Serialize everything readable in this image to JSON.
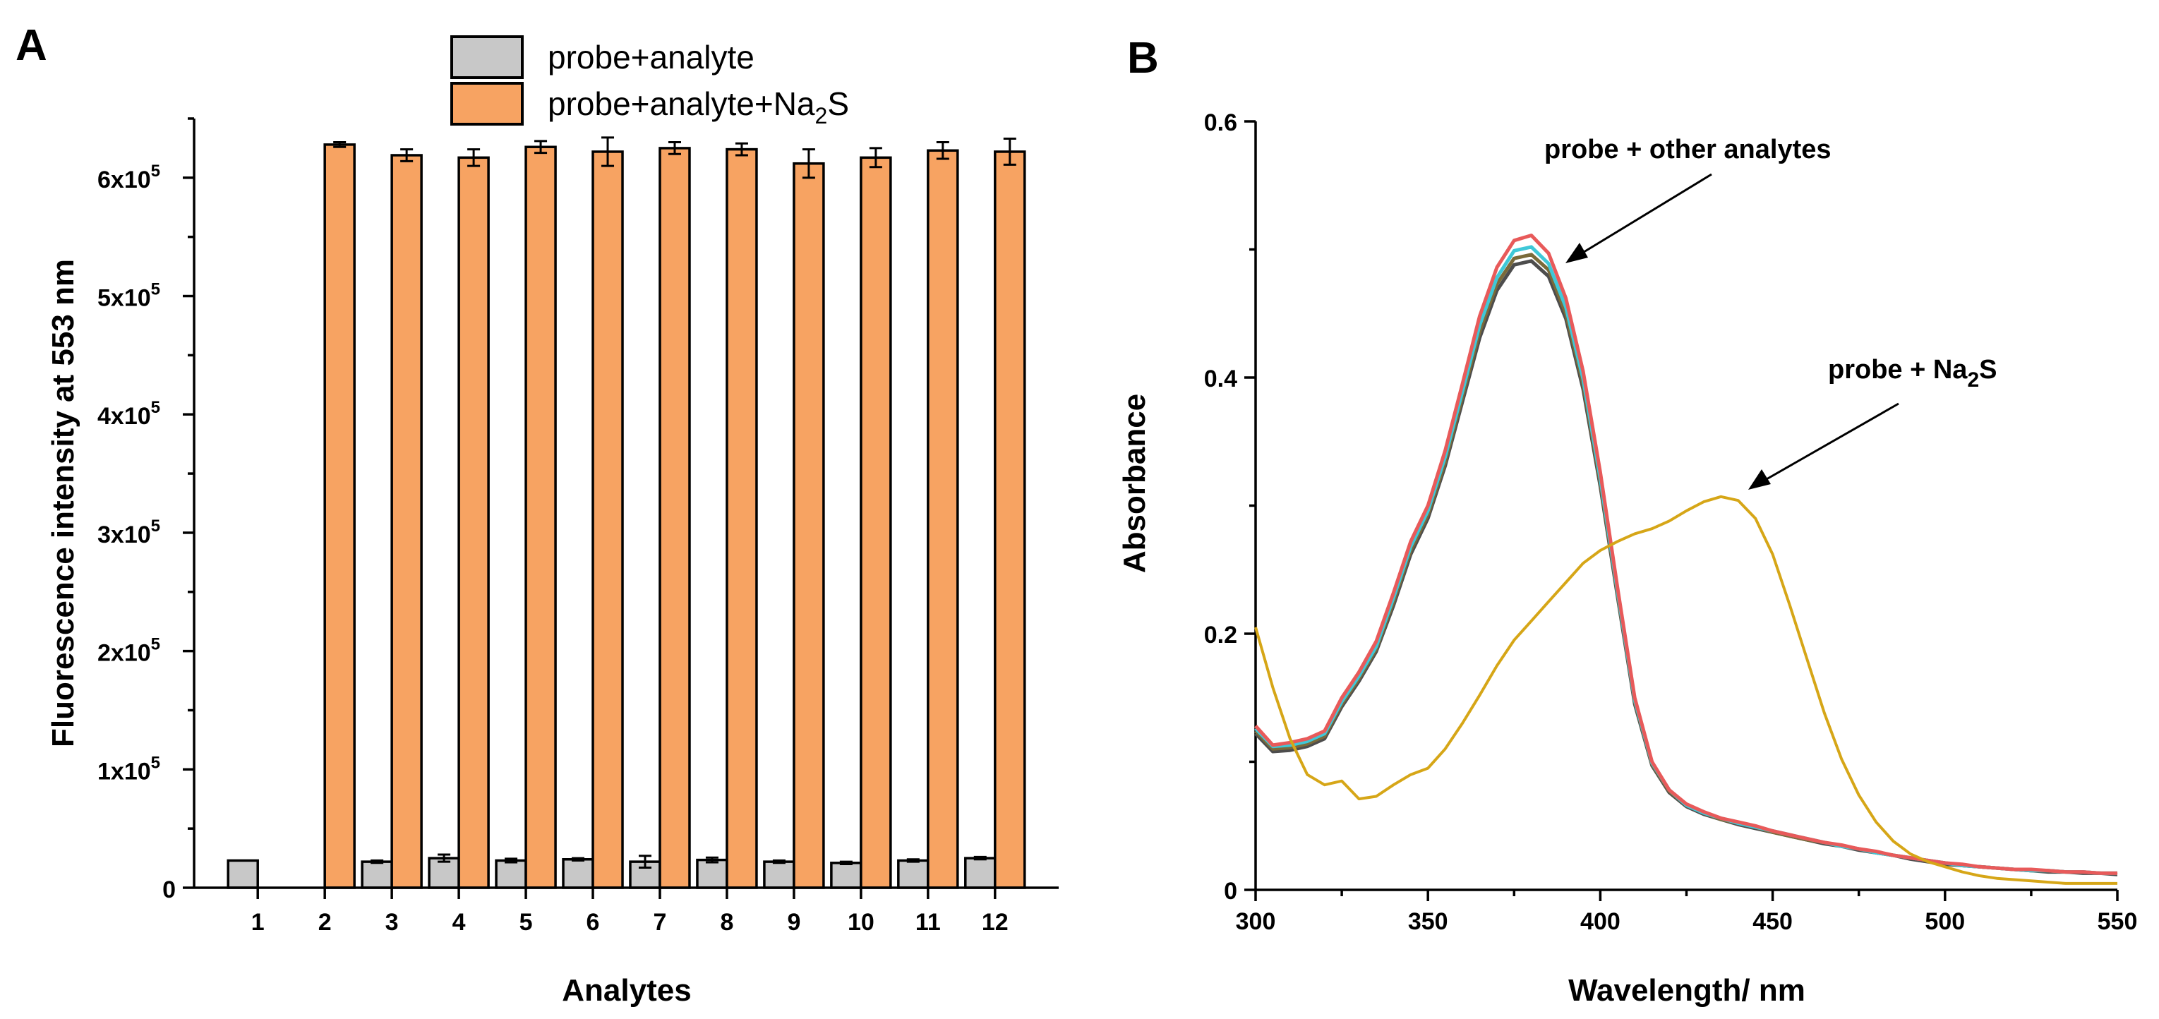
{
  "chart_data": [
    {
      "type": "bar",
      "panel_label": "A",
      "categories": [
        "1",
        "2",
        "3",
        "4",
        "5",
        "6",
        "7",
        "8",
        "9",
        "10",
        "11",
        "12"
      ],
      "xlabel": "Analytes",
      "ylabel": "Fluorescence intensity at 553 nm",
      "ylim": [
        0,
        650000
      ],
      "yticks": [
        {
          "value": 0,
          "label": "0"
        },
        {
          "value": 100000,
          "label": "1x10",
          "exp": "5"
        },
        {
          "value": 200000,
          "label": "2x10",
          "exp": "5"
        },
        {
          "value": 300000,
          "label": "3x10",
          "exp": "5"
        },
        {
          "value": 400000,
          "label": "4x10",
          "exp": "5"
        },
        {
          "value": 500000,
          "label": "5x10",
          "exp": "5"
        },
        {
          "value": 600000,
          "label": "6x10",
          "exp": "5"
        }
      ],
      "grid": false,
      "legend_position": "top",
      "series": [
        {
          "name": "probe+analyte",
          "color": "#c8c8c8",
          "values": [
            23000,
            null,
            22000,
            25000,
            23000,
            24000,
            22000,
            23500,
            22000,
            21000,
            23000,
            25000
          ],
          "errors": [
            0,
            null,
            1000,
            3000,
            1500,
            1000,
            5000,
            2000,
            1000,
            1000,
            1000,
            1000
          ]
        },
        {
          "name_parts": [
            "probe+analyte+Na",
            "2",
            "S"
          ],
          "name": "probe+analyte+Na2S",
          "color": "#f7a362",
          "values": [
            null,
            628000,
            619000,
            617000,
            626000,
            622000,
            625000,
            624000,
            612000,
            617000,
            623000,
            622000
          ],
          "errors": [
            null,
            2000,
            5000,
            7000,
            5000,
            12000,
            5000,
            5000,
            12000,
            8000,
            7000,
            11000
          ]
        }
      ]
    },
    {
      "type": "line",
      "panel_label": "B",
      "xlabel": "Wavelength/ nm",
      "ylabel": "Absorbance",
      "xlim": [
        300,
        550
      ],
      "ylim": [
        0,
        0.6
      ],
      "xticks": [
        300,
        350,
        400,
        450,
        500,
        550
      ],
      "yticks": [
        {
          "value": 0,
          "label": "0"
        },
        {
          "value": 0.2,
          "label": "0.2"
        },
        {
          "value": 0.4,
          "label": "0.4"
        },
        {
          "value": 0.6,
          "label": "0.6"
        }
      ],
      "grid": false,
      "annotations": [
        {
          "text_parts": [
            "probe + other analytes"
          ],
          "target": "peak of probe + other analytes curves near 380 nm"
        },
        {
          "text_parts": [
            "probe + Na",
            "2",
            "S"
          ],
          "target": "peak of probe + Na2S curve near 437 nm"
        }
      ],
      "x": [
        300,
        305,
        310,
        315,
        320,
        325,
        330,
        335,
        340,
        345,
        350,
        355,
        360,
        365,
        370,
        375,
        380,
        385,
        390,
        395,
        400,
        405,
        410,
        415,
        420,
        425,
        430,
        435,
        440,
        445,
        450,
        455,
        460,
        465,
        470,
        475,
        480,
        485,
        490,
        495,
        500,
        505,
        510,
        515,
        520,
        525,
        530,
        535,
        540,
        545,
        550
      ],
      "series": [
        {
          "name": "probe + other analytes (1)",
          "color": "#4d4d4d",
          "values": [
            0.122,
            0.108,
            0.109,
            0.112,
            0.118,
            0.143,
            0.163,
            0.186,
            0.222,
            0.262,
            0.29,
            0.331,
            0.381,
            0.431,
            0.468,
            0.488,
            0.491,
            0.479,
            0.446,
            0.391,
            0.315,
            0.229,
            0.145,
            0.097,
            0.076,
            0.065,
            0.059,
            0.055,
            0.051,
            0.048,
            0.045,
            0.042,
            0.039,
            0.036,
            0.034,
            0.031,
            0.029,
            0.027,
            0.024,
            0.022,
            0.02,
            0.019,
            0.018,
            0.017,
            0.016,
            0.015,
            0.014,
            0.014,
            0.013,
            0.013,
            0.012
          ]
        },
        {
          "name": "probe + other analytes (2)",
          "color": "#7a6a3a",
          "values": [
            0.124,
            0.11,
            0.111,
            0.114,
            0.12,
            0.145,
            0.165,
            0.188,
            0.225,
            0.265,
            0.293,
            0.334,
            0.385,
            0.436,
            0.473,
            0.493,
            0.496,
            0.484,
            0.45,
            0.395,
            0.318,
            0.231,
            0.147,
            0.098,
            0.077,
            0.066,
            0.06,
            0.055,
            0.052,
            0.049,
            0.045,
            0.042,
            0.039,
            0.037,
            0.034,
            0.032,
            0.029,
            0.027,
            0.025,
            0.023,
            0.021,
            0.019,
            0.018,
            0.017,
            0.016,
            0.015,
            0.015,
            0.014,
            0.014,
            0.013,
            0.013
          ]
        },
        {
          "name": "probe + other analytes (3)",
          "color": "#3fc8d8",
          "values": [
            0.126,
            0.112,
            0.113,
            0.116,
            0.122,
            0.147,
            0.167,
            0.19,
            0.228,
            0.268,
            0.296,
            0.338,
            0.389,
            0.441,
            0.478,
            0.499,
            0.502,
            0.489,
            0.455,
            0.399,
            0.321,
            0.233,
            0.148,
            0.099,
            0.078,
            0.066,
            0.06,
            0.056,
            0.052,
            0.049,
            0.046,
            0.043,
            0.04,
            0.037,
            0.034,
            0.032,
            0.029,
            0.027,
            0.025,
            0.023,
            0.021,
            0.019,
            0.018,
            0.017,
            0.016,
            0.015,
            0.015,
            0.014,
            0.014,
            0.013,
            0.013
          ]
        },
        {
          "name": "probe + other analytes (4)",
          "color": "#e85a5a",
          "values": [
            0.128,
            0.113,
            0.115,
            0.118,
            0.124,
            0.15,
            0.17,
            0.194,
            0.232,
            0.272,
            0.3,
            0.343,
            0.395,
            0.448,
            0.486,
            0.507,
            0.511,
            0.497,
            0.462,
            0.405,
            0.326,
            0.236,
            0.15,
            0.1,
            0.078,
            0.067,
            0.061,
            0.056,
            0.053,
            0.05,
            0.046,
            0.043,
            0.04,
            0.037,
            0.035,
            0.032,
            0.03,
            0.027,
            0.025,
            0.023,
            0.021,
            0.02,
            0.018,
            0.017,
            0.016,
            0.016,
            0.015,
            0.014,
            0.014,
            0.013,
            0.013
          ]
        },
        {
          "name": "probe + Na2S",
          "color": "#d6a617",
          "values": [
            0.205,
            0.158,
            0.118,
            0.09,
            0.082,
            0.085,
            0.071,
            0.073,
            0.082,
            0.09,
            0.095,
            0.11,
            0.13,
            0.152,
            0.175,
            0.195,
            0.21,
            0.225,
            0.24,
            0.255,
            0.265,
            0.272,
            0.278,
            0.282,
            0.288,
            0.296,
            0.303,
            0.307,
            0.304,
            0.29,
            0.262,
            0.222,
            0.18,
            0.138,
            0.102,
            0.074,
            0.053,
            0.038,
            0.028,
            0.022,
            0.018,
            0.014,
            0.011,
            0.009,
            0.008,
            0.007,
            0.006,
            0.005,
            0.005,
            0.005,
            0.005
          ]
        }
      ]
    }
  ]
}
